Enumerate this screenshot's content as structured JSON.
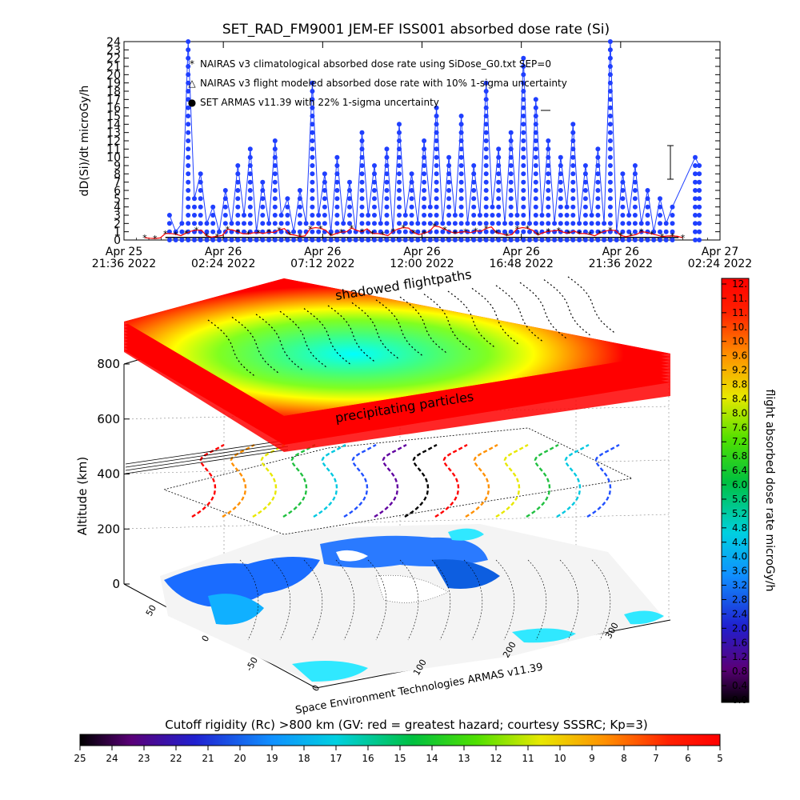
{
  "title": "SET_RAD_FM9001  JEM-EF ISS001 absorbed dose rate (Si)",
  "chart_data": [
    {
      "type": "line",
      "name": "dose-rate-timeseries",
      "ylabel": "dD(Si)/dt microGy/h",
      "ylim": [
        0,
        24
      ],
      "yticks": [
        "0",
        "1",
        "2",
        "3",
        "4",
        "5",
        "6",
        "7",
        "8",
        "9",
        "10",
        "11",
        "12",
        "13",
        "14",
        "15",
        "16",
        "17",
        "18",
        "19",
        "20",
        "21",
        "22",
        "23",
        "24"
      ],
      "xlim_hours": [
        0,
        28.8
      ],
      "xticks": [
        {
          "line1": "Apr 25",
          "line2": "21:36 2022",
          "h": 0
        },
        {
          "line1": "Apr 26",
          "line2": "02:24 2022",
          "h": 4.8
        },
        {
          "line1": "Apr 26",
          "line2": "07:12 2022",
          "h": 9.6
        },
        {
          "line1": "Apr 26",
          "line2": "12:00 2022",
          "h": 14.4
        },
        {
          "line1": "Apr 26",
          "line2": "16:48 2022",
          "h": 19.2
        },
        {
          "line1": "Apr 26",
          "line2": "21:36 2022",
          "h": 24
        },
        {
          "line1": "Apr 27",
          "line2": "02:24 2022",
          "h": 28.8
        }
      ],
      "legend": [
        {
          "symbol": "*",
          "color": "#ff0000",
          "label": "NAIRAS v3 climatological absorbed dose rate using SiDose_G0.txt SEP=0"
        },
        {
          "symbol": "△",
          "color": "#000000",
          "label": "NAIRAS v3 flight modeled absorbed dose rate with 10% 1-sigma uncertainty"
        },
        {
          "symbol": "●",
          "color": "#0000ff",
          "label": "SET ARMAS v11.39 with 22% 1-sigma uncertainty"
        }
      ],
      "series": [
        {
          "name": "SET ARMAS v11.39",
          "color": "#1f3fff",
          "x": [
            2.2,
            2.5,
            2.8,
            3.1,
            3.4,
            3.7,
            4.0,
            4.3,
            4.6,
            4.9,
            5.2,
            5.5,
            5.8,
            6.1,
            6.4,
            6.7,
            7.0,
            7.3,
            7.6,
            7.9,
            8.2,
            8.5,
            8.8,
            9.1,
            9.4,
            9.7,
            10.0,
            10.3,
            10.6,
            10.9,
            11.2,
            11.5,
            11.8,
            12.1,
            12.4,
            12.7,
            13.0,
            13.3,
            13.6,
            13.9,
            14.2,
            14.5,
            14.8,
            15.1,
            15.4,
            15.7,
            16.0,
            16.3,
            16.6,
            16.9,
            17.2,
            17.5,
            17.8,
            18.1,
            18.4,
            18.7,
            19.0,
            19.3,
            19.6,
            19.9,
            20.2,
            20.5,
            20.8,
            21.1,
            21.4,
            21.7,
            22.0,
            22.3,
            22.6,
            22.9,
            23.2,
            23.5,
            23.8,
            24.1,
            24.4,
            24.7,
            25.0,
            25.3,
            25.6,
            25.9,
            26.2,
            26.5,
            27.6,
            27.8
          ],
          "y": [
            3,
            1,
            2,
            24,
            5,
            8,
            2,
            4,
            1,
            6,
            2,
            9,
            3,
            11,
            1,
            7,
            2,
            12,
            3,
            5,
            1,
            6,
            2,
            19,
            3,
            8,
            1,
            10,
            2,
            7,
            1,
            13,
            3,
            9,
            2,
            11,
            1,
            14,
            3,
            8,
            2,
            12,
            4,
            16,
            2,
            10,
            3,
            15,
            2,
            9,
            3,
            19,
            4,
            11,
            2,
            13,
            3,
            22,
            2,
            17,
            3,
            12,
            2,
            10,
            4,
            14,
            2,
            9,
            3,
            11,
            2,
            24,
            1,
            8,
            3,
            9,
            2,
            6,
            1,
            5,
            2,
            4,
            10,
            9
          ]
        },
        {
          "name": "NAIRAS v3 climatological",
          "color": "#ff0000",
          "x": [
            1.0,
            2.0,
            3.0,
            4.0,
            5.0,
            6.0,
            7.0,
            8.0,
            9.0,
            10.0,
            11.0,
            12.0,
            13.0,
            14.0,
            15.0,
            16.0,
            17.0,
            18.0,
            19.0,
            20.0,
            21.0,
            22.0,
            23.0,
            24.0,
            25.0,
            26.0,
            27.0
          ],
          "y": [
            0.3,
            0.8,
            1.2,
            0.6,
            1.3,
            0.9,
            1.4,
            0.7,
            1.5,
            1.0,
            1.6,
            0.8,
            1.5,
            1.1,
            1.7,
            1.0,
            1.6,
            0.9,
            1.5,
            1.1,
            1.3,
            0.8,
            1.2,
            0.7,
            1.0,
            0.5,
            0.4
          ]
        }
      ]
    },
    {
      "type": "heatmap",
      "name": "altitude-3d-view",
      "zlabel": "Altitude (km)",
      "zticks": [
        "0",
        "200",
        "400",
        "600",
        "800"
      ],
      "lat_ticks": [
        "50",
        "0",
        "-50"
      ],
      "lon_ticks": [
        "0",
        "100",
        "200",
        "300"
      ],
      "annotations": [
        "shadowed flightpaths",
        "precipitating particles"
      ],
      "credit": "Space Environment Technologies ARMAS v11.39"
    },
    {
      "type": "heatmap",
      "name": "dose-colorbar",
      "label": "flight absorbed dose rate microGy/h",
      "ticks": [
        "12.",
        "11.",
        "11.",
        "10.",
        "10.",
        "9.6",
        "9.2",
        "8.8",
        "8.4",
        "8.0",
        "7.6",
        "7.2",
        "6.8",
        "6.4",
        "6.0",
        "5.6",
        "5.2",
        "4.8",
        "4.4",
        "4.0",
        "3.6",
        "3.2",
        "2.8",
        "2.4",
        "2.0",
        "1.6",
        "1.2",
        "0.8",
        "0.4",
        "0.0"
      ]
    },
    {
      "type": "heatmap",
      "name": "rigidity-colorbar",
      "label": "Cutoff rigidity (Rc) >800 km (GV: red = greatest hazard; courtesy SSSRC; Kp=3)",
      "ticks": [
        "25",
        "24",
        "23",
        "22",
        "21",
        "20",
        "19",
        "18",
        "17",
        "16",
        "15",
        "14",
        "13",
        "12",
        "11",
        "10",
        "9",
        "8",
        "7",
        "6",
        "5"
      ]
    }
  ]
}
